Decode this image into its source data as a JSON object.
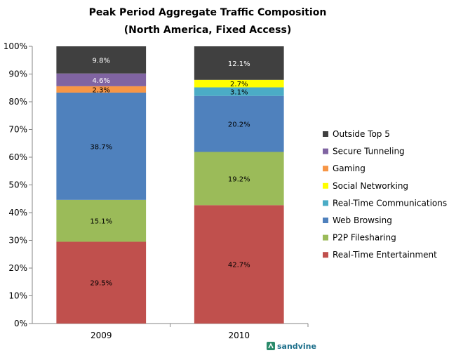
{
  "chart_data": {
    "type": "bar",
    "stacked": true,
    "title": "Peak Period Aggregate Traffic Composition",
    "subtitle": "(North America, Fixed Access)",
    "categories": [
      "2009",
      "2010"
    ],
    "ylim": [
      0,
      100
    ],
    "yticks": [
      "0%",
      "10%",
      "20%",
      "30%",
      "40%",
      "50%",
      "60%",
      "70%",
      "80%",
      "90%",
      "100%"
    ],
    "grid": false,
    "legend_position": "right",
    "series": [
      {
        "name": "Real-Time Entertainment",
        "color": "#c0504d",
        "values": [
          29.5,
          42.7
        ],
        "labels": [
          "29.5%",
          "42.7%"
        ]
      },
      {
        "name": "P2P Filesharing",
        "color": "#9bbb59",
        "values": [
          15.1,
          19.2
        ],
        "labels": [
          "15.1%",
          "19.2%"
        ]
      },
      {
        "name": "Web Browsing",
        "color": "#4f81bd",
        "values": [
          38.7,
          20.2
        ],
        "labels": [
          "38.7%",
          "20.2%"
        ]
      },
      {
        "name": "Real-Time Communications",
        "color": "#4bacc6",
        "values": [
          0,
          3.1
        ],
        "labels": [
          "",
          "3.1%"
        ]
      },
      {
        "name": "Social Networking",
        "color": "#ffff00",
        "values": [
          0,
          2.7
        ],
        "labels": [
          "",
          "2.7%"
        ]
      },
      {
        "name": "Gaming",
        "color": "#f79646",
        "values": [
          2.3,
          0
        ],
        "labels": [
          "2.3%",
          ""
        ]
      },
      {
        "name": "Secure Tunneling",
        "color": "#8064a2",
        "values": [
          4.6,
          0
        ],
        "labels": [
          "4.6%",
          ""
        ]
      },
      {
        "name": "Outside Top 5",
        "color": "#404040",
        "values": [
          9.8,
          12.1
        ],
        "labels": [
          "9.8%",
          "12.1%"
        ]
      }
    ]
  },
  "branding": {
    "text": "sandvine",
    "icon": "sandvine-logo-icon"
  }
}
